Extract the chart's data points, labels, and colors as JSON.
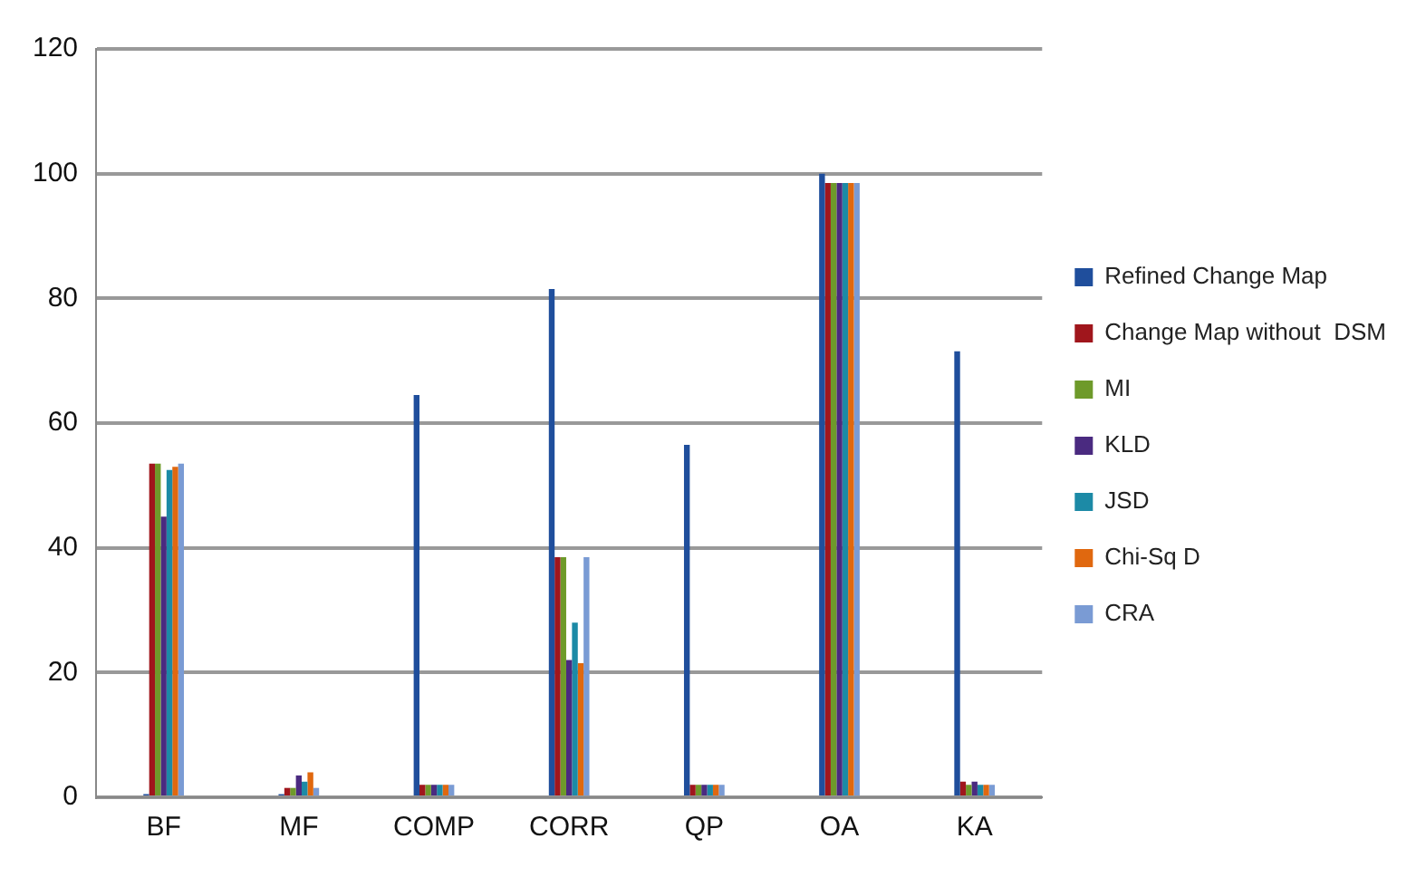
{
  "chart_data": {
    "type": "bar",
    "categories": [
      "BF",
      "MF",
      "COMP",
      "CORR",
      "QP",
      "OA",
      "KA"
    ],
    "series": [
      {
        "name": "Refined Change Map",
        "color": "#1f4e9c",
        "values": [
          0.5,
          0.5,
          64.5,
          81.5,
          56.5,
          100,
          71.5
        ]
      },
      {
        "name": "Change Map without  DSM",
        "color": "#a0161c",
        "values": [
          53.5,
          1.5,
          2,
          38.5,
          2,
          98.5,
          2.5
        ]
      },
      {
        "name": "MI",
        "color": "#6e9a2a",
        "values": [
          53.5,
          1.5,
          2,
          38.5,
          2,
          98.5,
          2
        ]
      },
      {
        "name": "KLD",
        "color": "#4a2a80",
        "values": [
          45,
          3.5,
          2,
          22,
          2,
          98.5,
          2.5
        ]
      },
      {
        "name": "JSD",
        "color": "#1c8aa6",
        "values": [
          52.5,
          2.5,
          2,
          28,
          2,
          98.5,
          2
        ]
      },
      {
        "name": "Chi-Sq D",
        "color": "#e0680f",
        "values": [
          53,
          4,
          2,
          21.5,
          2,
          98.5,
          2
        ]
      },
      {
        "name": "CRA",
        "color": "#7a9bd4",
        "values": [
          53.5,
          1.5,
          2,
          38.5,
          2,
          98.5,
          2
        ]
      }
    ],
    "ylim": [
      0,
      120
    ],
    "yticks": [
      0,
      20,
      40,
      60,
      80,
      100,
      120
    ],
    "grid": "y",
    "legend": "right"
  }
}
